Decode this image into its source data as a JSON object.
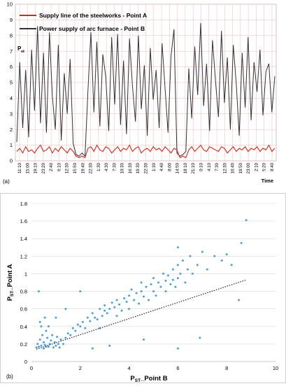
{
  "chart_data": [
    {
      "panel_label": "(a)",
      "type": "line",
      "title": "",
      "xlabel": "Time",
      "ylabel_main": "P",
      "ylabel_sub": "st",
      "ylim": [
        0,
        10
      ],
      "yticks": [
        "0",
        "1",
        "2",
        "3",
        "4",
        "5",
        "6",
        "7",
        "8",
        "9",
        "10"
      ],
      "x_tick_labels": [
        "11:10",
        "15:00",
        "19:10",
        "23:20",
        "2:40",
        "6:10",
        "12:30",
        "15:50",
        "19:40",
        "22:30",
        "1:30",
        "4:30",
        "7:30",
        "10:30",
        "16:30",
        "19:30",
        "22:30",
        "1:30",
        "4:40",
        "8:00",
        "14:50",
        "18:10",
        "21:10",
        "0:10",
        "4:10",
        "7:30",
        "12:30",
        "16:40",
        "19:50",
        "23:00",
        "2:10",
        "5:20",
        "8:40"
      ],
      "grid": true,
      "legend_position": "top-left",
      "colors": {
        "series_a": "#d9261c",
        "series_b": "#333333",
        "grid": "#f2b8b8"
      },
      "series": [
        {
          "name": "Supply line of the steelworks      - Point  A",
          "color": "#d9261c",
          "values": [
            0.6,
            0.8,
            0.5,
            0.9,
            0.6,
            0.7,
            0.5,
            0.8,
            1.0,
            0.6,
            0.7,
            0.9,
            0.5,
            0.8,
            0.6,
            0.9,
            0.7,
            0.5,
            0.8,
            0.6,
            0.3,
            0.2,
            0.3,
            0.2,
            0.8,
            0.9,
            0.6,
            1.0,
            0.7,
            0.6,
            0.9,
            0.8,
            0.5,
            0.7,
            0.9,
            0.6,
            0.8,
            0.7,
            1.0,
            0.6,
            0.8,
            0.9,
            0.5,
            0.7,
            0.8,
            0.6,
            0.9,
            0.7,
            0.8,
            0.6,
            0.9,
            0.7,
            0.5,
            0.8,
            0.7,
            0.2,
            0.3,
            0.2,
            0.7,
            0.9,
            0.6,
            0.8,
            1.0,
            0.7,
            0.6,
            0.9,
            0.8,
            0.7,
            0.6,
            0.9,
            0.8,
            0.5,
            0.7,
            0.9,
            0.6,
            0.8,
            0.7,
            0.9,
            0.6,
            0.8,
            0.7,
            0.9,
            0.6,
            0.8,
            0.7,
            1.0,
            0.6,
            0.8
          ]
        },
        {
          "name": "Power supply of arc furnace      - Point  B",
          "color": "#333333",
          "values": [
            1.2,
            6.3,
            2.1,
            5.8,
            1.5,
            7.1,
            3.2,
            8.6,
            2.4,
            6.9,
            1.8,
            8.2,
            4.1,
            2.0,
            7.4,
            1.3,
            5.6,
            3.0,
            6.5,
            1.1,
            0.4,
            0.3,
            0.5,
            0.3,
            4.5,
            8.2,
            3.1,
            7.6,
            2.2,
            6.8,
            5.4,
            1.9,
            7.9,
            3.6,
            8.1,
            2.3,
            6.4,
            1.7,
            7.8,
            4.8,
            2.5,
            8.0,
            3.3,
            6.1,
            1.6,
            7.2,
            3.9,
            5.8,
            2.1,
            7.5,
            4.6,
            1.8,
            6.7,
            8.4,
            0.5,
            0.3,
            0.4,
            0.6,
            5.9,
            2.7,
            7.3,
            4.2,
            8.8,
            3.5,
            6.2,
            1.9,
            7.7,
            5.1,
            2.8,
            8.3,
            3.7,
            6.6,
            2.0,
            7.4,
            4.9,
            1.6,
            6.9,
            3.4,
            7.9,
            2.6,
            6.3,
            4.4,
            7.1,
            2.9,
            5.7,
            6.2,
            3.1,
            5.4
          ]
        }
      ]
    },
    {
      "panel_label": "(b)",
      "type": "scatter",
      "title": "",
      "xlabel_main": "P",
      "xlabel_sub": "ST",
      "xlabel_suffix": "_Point B",
      "ylabel_main": "P",
      "ylabel_sub": "ST",
      "ylabel_suffix": "_Point A",
      "xlim": [
        0,
        10
      ],
      "ylim": [
        0,
        1.8
      ],
      "xticks": [
        "0",
        "2",
        "4",
        "6",
        "8",
        "10"
      ],
      "yticks": [
        "0",
        "0.2",
        "0.4",
        "0.6",
        "0.8",
        "1",
        "1.2",
        "1.4",
        "1.6",
        "1.8"
      ],
      "grid": true,
      "trendline": {
        "x": [
          0.2,
          8.8
        ],
        "y": [
          0.14,
          0.93
        ],
        "style": "dotted"
      },
      "colors": {
        "points": "#4a9fdc",
        "trendline": "#222222",
        "grid": "#d9d9d9"
      },
      "points": [
        [
          0.2,
          0.16
        ],
        [
          0.25,
          0.2
        ],
        [
          0.3,
          0.17
        ],
        [
          0.35,
          0.25
        ],
        [
          0.4,
          0.18
        ],
        [
          0.3,
          0.8
        ],
        [
          0.45,
          0.3
        ],
        [
          0.5,
          0.22
        ],
        [
          0.55,
          0.19
        ],
        [
          0.6,
          0.35
        ],
        [
          0.35,
          0.45
        ],
        [
          0.5,
          0.15
        ],
        [
          0.65,
          0.27
        ],
        [
          0.7,
          0.17
        ],
        [
          0.75,
          0.2
        ],
        [
          0.8,
          0.24
        ],
        [
          0.9,
          0.16
        ],
        [
          1.0,
          0.18
        ],
        [
          1.1,
          0.2
        ],
        [
          1.2,
          0.25
        ],
        [
          0.4,
          0.4
        ],
        [
          0.55,
          0.5
        ],
        [
          0.6,
          0.17
        ],
        [
          0.7,
          0.4
        ],
        [
          0.85,
          0.3
        ],
        [
          0.95,
          0.22
        ],
        [
          1.05,
          0.28
        ],
        [
          1.15,
          0.16
        ],
        [
          1.3,
          0.2
        ],
        [
          1.4,
          0.27
        ],
        [
          1.5,
          0.32
        ],
        [
          1.6,
          0.3
        ],
        [
          1.7,
          0.38
        ],
        [
          1.8,
          0.35
        ],
        [
          1.9,
          0.42
        ],
        [
          2.0,
          0.4
        ],
        [
          2.0,
          0.8
        ],
        [
          2.1,
          0.45
        ],
        [
          2.2,
          0.38
        ],
        [
          2.3,
          0.5
        ],
        [
          2.4,
          0.46
        ],
        [
          2.5,
          0.55
        ],
        [
          2.6,
          0.5
        ],
        [
          2.7,
          0.48
        ],
        [
          2.8,
          0.6
        ],
        [
          2.9,
          0.52
        ],
        [
          3.0,
          0.58
        ],
        [
          3.0,
          0.64
        ],
        [
          3.1,
          0.55
        ],
        [
          3.2,
          0.6
        ],
        [
          3.3,
          0.67
        ],
        [
          3.4,
          0.62
        ],
        [
          3.5,
          0.7
        ],
        [
          3.5,
          0.52
        ],
        [
          3.6,
          0.65
        ],
        [
          3.7,
          0.58
        ],
        [
          3.8,
          0.72
        ],
        [
          3.9,
          0.68
        ],
        [
          4.0,
          0.75
        ],
        [
          4.0,
          0.6
        ],
        [
          4.1,
          0.82
        ],
        [
          4.2,
          0.7
        ],
        [
          4.3,
          0.78
        ],
        [
          4.4,
          0.66
        ],
        [
          4.5,
          0.8
        ],
        [
          4.5,
          0.9
        ],
        [
          4.6,
          0.74
        ],
        [
          4.7,
          0.85
        ],
        [
          4.8,
          0.7
        ],
        [
          4.9,
          0.88
        ],
        [
          5.0,
          0.8
        ],
        [
          5.0,
          0.95
        ],
        [
          5.1,
          0.75
        ],
        [
          5.2,
          0.9
        ],
        [
          5.3,
          0.85
        ],
        [
          5.4,
          1.0
        ],
        [
          5.5,
          0.92
        ],
        [
          5.5,
          0.8
        ],
        [
          5.6,
          0.98
        ],
        [
          5.7,
          0.88
        ],
        [
          5.8,
          1.05
        ],
        [
          5.8,
          0.93
        ],
        [
          5.9,
          0.85
        ],
        [
          6.0,
          1.1
        ],
        [
          6.0,
          1.3
        ],
        [
          6.0,
          0.95
        ],
        [
          6.1,
          1.0
        ],
        [
          6.2,
          1.15
        ],
        [
          6.3,
          0.9
        ],
        [
          6.4,
          1.05
        ],
        [
          6.5,
          1.2
        ],
        [
          6.6,
          1.0
        ],
        [
          6.8,
          1.1
        ],
        [
          6.9,
          0.27
        ],
        [
          7.0,
          1.25
        ],
        [
          7.2,
          1.05
        ],
        [
          7.5,
          1.2
        ],
        [
          7.8,
          1.15
        ],
        [
          8.0,
          1.22
        ],
        [
          8.2,
          1.1
        ],
        [
          8.5,
          0.7
        ],
        [
          8.6,
          1.35
        ],
        [
          8.8,
          1.61
        ],
        [
          6.0,
          0.15
        ],
        [
          1.4,
          0.6
        ],
        [
          2.5,
          0.15
        ],
        [
          3.2,
          0.18
        ],
        [
          4.6,
          0.25
        ],
        [
          2.8,
          0.38
        ],
        [
          1.0,
          0.5
        ]
      ]
    }
  ]
}
